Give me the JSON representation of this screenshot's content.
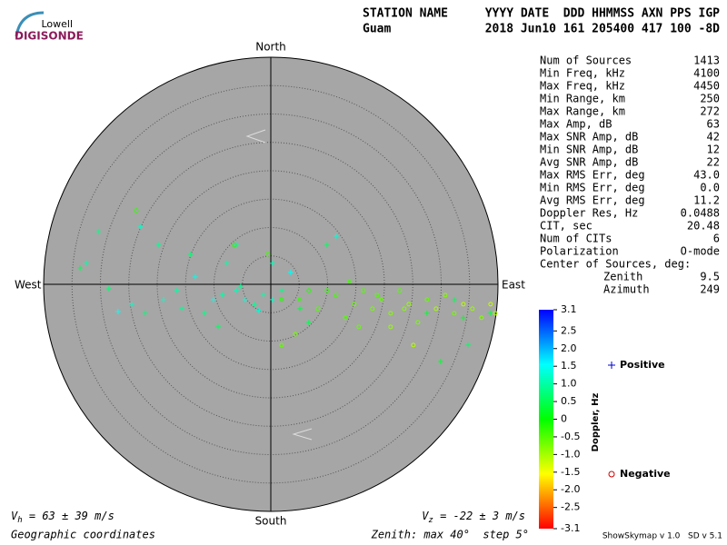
{
  "logo": {
    "top": "Lowell",
    "bottom": "DIGISONDE"
  },
  "header": {
    "row1_left": "STATION NAME",
    "row1_right": "YYYY DATE  DDD HHMMSS AXN PPS IGP",
    "row2_left": "Guam",
    "row2_right": "2018 Jun10 161 205400 417 100 -8D"
  },
  "parameters": [
    {
      "label": "Num of Sources",
      "value": "1413"
    },
    {
      "label": "Min Freq, kHz",
      "value": "4100"
    },
    {
      "label": "Max Freq, kHz",
      "value": "4450"
    },
    {
      "label": "Min Range, km",
      "value": "250"
    },
    {
      "label": "Max Range, km",
      "value": "272"
    },
    {
      "label": "Max Amp, dB",
      "value": "63"
    },
    {
      "label": "Max SNR Amp, dB",
      "value": "42"
    },
    {
      "label": "Min SNR Amp, dB",
      "value": "12"
    },
    {
      "label": "Avg SNR Amp, dB",
      "value": "22"
    },
    {
      "label": "Max RMS Err, deg",
      "value": "43.0"
    },
    {
      "label": "Min RMS Err, deg",
      "value": "0.0"
    },
    {
      "label": "Avg RMS Err, deg",
      "value": "11.2"
    },
    {
      "label": "Doppler Res, Hz",
      "value": "0.0488"
    },
    {
      "label": "CIT, sec",
      "value": "20.48"
    },
    {
      "label": "Num of CITs",
      "value": "6"
    },
    {
      "label": "Polarization",
      "value": "O-mode"
    }
  ],
  "center": {
    "title": "Center of Sources, deg:",
    "rows": [
      {
        "label": "Zenith",
        "value": "9.5"
      },
      {
        "label": "Azimuth",
        "value": "249"
      }
    ]
  },
  "footer": {
    "vh": {
      "symbol": "V",
      "sub": "h",
      "text": " = 63 ± 39 m/s"
    },
    "vz": {
      "symbol": "V",
      "sub": "z",
      "text": " = -22 ± 3 m/s"
    },
    "coords": "Geographic coordinates",
    "zenith": "Zenith: max 40°  step 5°",
    "version": "ShowSkymap v 1.0   SD v 5.1"
  },
  "chart_data": {
    "type": "skymap",
    "directions": {
      "north": "North",
      "south": "South",
      "west": "West",
      "east": "East"
    },
    "rlim": [
      0,
      40
    ],
    "rticks": [
      5,
      10,
      15,
      20,
      25,
      30,
      35
    ],
    "grid": true,
    "colorbar": {
      "label": "Doppler, Hz",
      "lim": [
        -3.1,
        3.1
      ],
      "ticks": [
        3.1,
        2.5,
        {
          "value": 2,
          "label": "2.0"
        },
        1.5,
        {
          "value": 1,
          "label": "1.0"
        },
        0.5,
        0,
        -0.5,
        {
          "value": -1,
          "label": "-1.0"
        },
        -1.5,
        {
          "value": -2,
          "label": "-2.0"
        },
        -2.5,
        -3.1
      ]
    },
    "series": [
      {
        "name": "Positive",
        "color": "#0000cc",
        "marker": "plus",
        "x": [
          -33.6,
          -32.5,
          -30.4,
          -26.9,
          -22.1,
          -18.9,
          -15.7,
          -13.3,
          -9.3,
          -6.1,
          -4.5,
          -2.9,
          -1.3,
          0.3,
          1.9,
          3.5,
          5.1,
          -7.7,
          -14.1,
          -22.9,
          -19.7,
          6.7,
          11.5,
          9.9,
          -6.1,
          -10.1,
          -11.7,
          -16.5,
          -24.5,
          -28.5,
          27.5,
          32.3,
          33.9,
          34.7,
          38.7,
          29.9,
          0.3,
          -2.1,
          -5.3,
          -8.5
        ],
        "y": [
          2.9,
          3.7,
          9.3,
          -4.8,
          -5.1,
          -2.7,
          -4.3,
          1.3,
          -7.5,
          -1.1,
          -2.7,
          -3.5,
          -1.9,
          -2.7,
          -1.1,
          2.1,
          -4.3,
          3.7,
          5.3,
          10.1,
          6.9,
          -6.7,
          8.5,
          6.9,
          6.9,
          -2.7,
          -5.1,
          -1.1,
          -3.5,
          -0.8,
          -5.1,
          -2.7,
          -5.9,
          -10.7,
          -5.1,
          -13.6,
          3.7,
          -4.6,
          -0.3,
          -1.9
        ],
        "doppler": [
          0.5,
          1.0,
          0.8,
          1.5,
          0.7,
          1.2,
          0.9,
          1.4,
          0.6,
          1.1,
          1.3,
          0.9,
          1.0,
          1.2,
          0.8,
          1.5,
          0.4,
          1.0,
          0.7,
          1.2,
          0.9,
          0.5,
          1.3,
          0.6,
          1.1,
          1.4,
          0.8,
          1.0,
          1.2,
          0.7,
          0.3,
          0.5,
          0.2,
          0.6,
          0.4,
          0.3,
          1.1,
          1.3,
          0.9,
          1.0
        ]
      },
      {
        "name": "Negative",
        "color": "#cc0000",
        "marker": "circle",
        "x": [
          -23.7,
          -6.4,
          -0.5,
          1.9,
          5.1,
          8.3,
          11.5,
          14.7,
          16.3,
          17.9,
          19.5,
          21.1,
          22.7,
          24.3,
          25.9,
          27.5,
          29.1,
          30.7,
          32.3,
          33.9,
          35.5,
          37.1,
          38.7,
          39.5,
          13.1,
          9.9,
          6.7,
          13.9,
          21.1,
          25.1,
          1.9,
          4.3,
          15.5,
          18.7,
          23.5
        ],
        "y": [
          13.0,
          6.9,
          5.3,
          -2.7,
          -2.7,
          -4.3,
          -1.9,
          -3.5,
          -1.1,
          -4.3,
          -2.7,
          -5.1,
          -1.1,
          -3.5,
          -6.7,
          -2.7,
          -4.3,
          -1.9,
          -5.1,
          -3.5,
          -4.3,
          -5.9,
          -3.5,
          -5.1,
          -5.9,
          -1.1,
          -1.1,
          0.5,
          -7.5,
          -10.7,
          -10.7,
          -8.8,
          -7.5,
          -1.9,
          -4.3
        ],
        "doppler": [
          -0.3,
          -0.2,
          -0.4,
          -0.2,
          -0.3,
          -0.5,
          -0.4,
          -0.6,
          -0.5,
          -0.7,
          -0.6,
          -0.8,
          -0.5,
          -0.9,
          -0.7,
          -0.6,
          -1.0,
          -0.8,
          -0.7,
          -1.1,
          -0.9,
          -0.8,
          -1.2,
          -1.0,
          -0.5,
          -0.3,
          -0.2,
          -0.4,
          -0.9,
          -1.1,
          -0.6,
          -0.7,
          -0.6,
          -0.5,
          -0.8
        ]
      }
    ]
  }
}
